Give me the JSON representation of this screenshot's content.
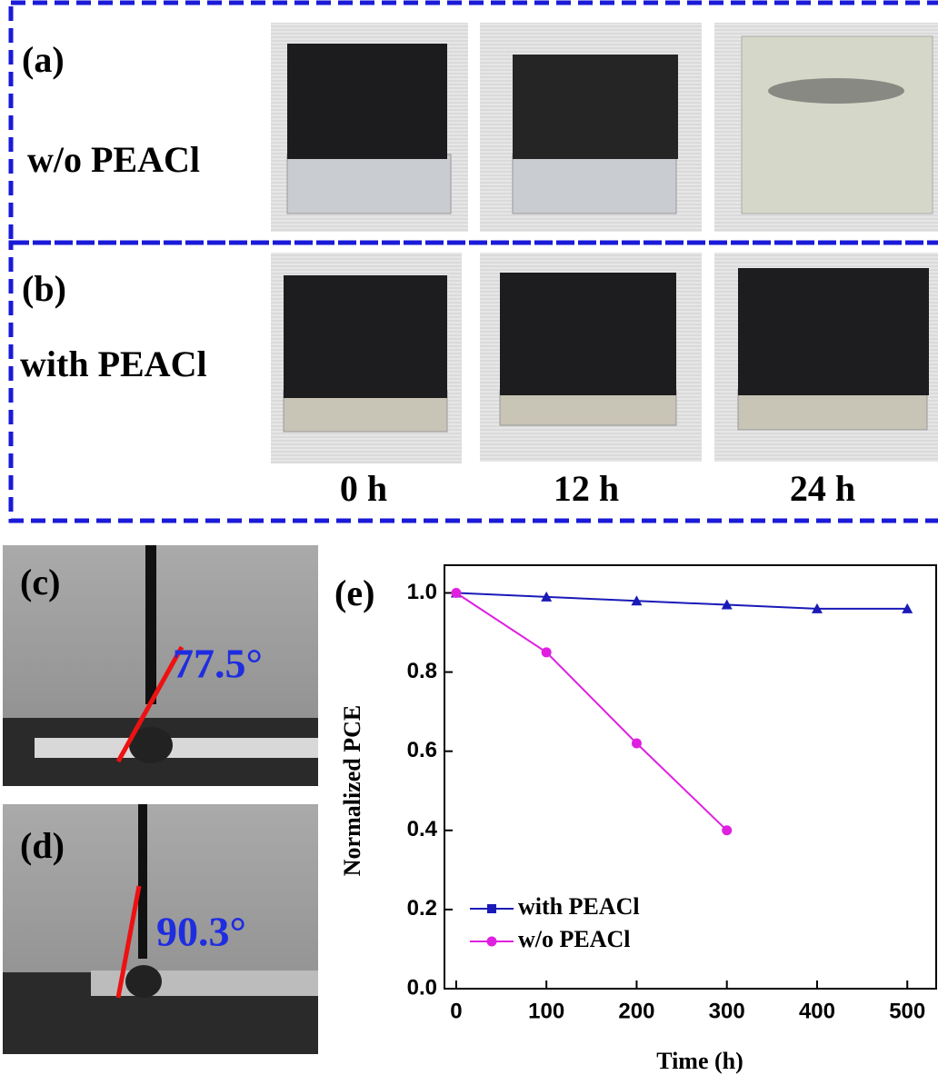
{
  "panels": {
    "a": {
      "label": "(a)",
      "sample": "w/o PEACl"
    },
    "b": {
      "label": "(b)",
      "sample": "with PEACl"
    },
    "times": [
      "0 h",
      "12 h",
      "24 h"
    ],
    "c": {
      "label": "(c)",
      "angle": "77.5°"
    },
    "d": {
      "label": "(d)",
      "angle": "90.3°"
    }
  },
  "chart_data": {
    "type": "line",
    "title": "(e)",
    "x_label": "Time (h)",
    "y_label": "Normalized PCE",
    "x": [
      0,
      100,
      200,
      300,
      400,
      500
    ],
    "series": [
      {
        "name": "with PEACl",
        "color": "#1a1ab8",
        "marker": "triangle",
        "values": [
          1.0,
          0.99,
          0.98,
          0.97,
          0.96,
          0.96
        ]
      },
      {
        "name": "w/o PEACl",
        "color": "#e020e0",
        "marker": "circle",
        "values": [
          1.0,
          0.85,
          0.62,
          0.4,
          null,
          null
        ]
      }
    ],
    "xlim": [
      -13,
      532
    ],
    "ylim": [
      0,
      1.07
    ],
    "xticks": [
      0,
      100,
      200,
      300,
      400,
      500
    ],
    "yticks": [
      {
        "value": 0,
        "label": "0.0"
      },
      0.2,
      0.4,
      0.6,
      0.8,
      {
        "value": 1,
        "label": "1.0"
      }
    ],
    "legend": "lower left"
  }
}
